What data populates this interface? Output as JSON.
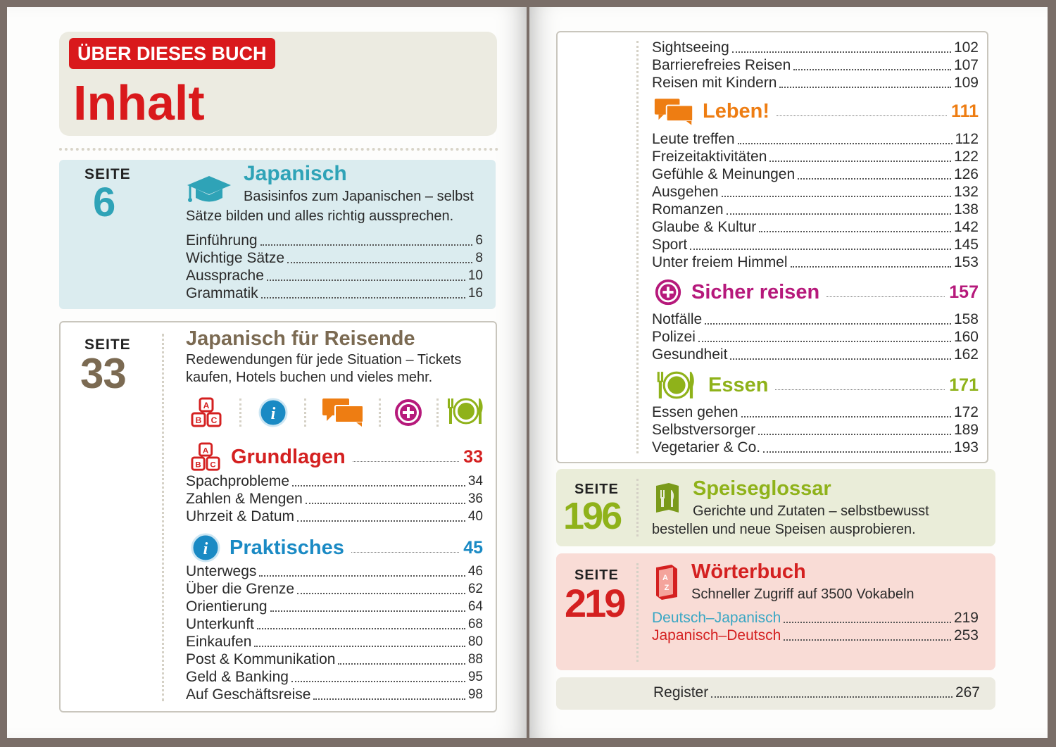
{
  "left": {
    "badge": "ÜBER DIESES BUCH",
    "title": "Inhalt",
    "box1": {
      "seite_label": "SEITE",
      "seite_num": "6",
      "heading": "Japanisch",
      "desc_line1": "Basisinfos zum Japanischen – selbst",
      "desc_line2": "Sätze bilden und alles richtig aussprechen.",
      "entries": [
        {
          "label": "Einführung",
          "page": "6"
        },
        {
          "label": "Wichtige Sätze",
          "page": "8"
        },
        {
          "label": "Aussprache",
          "page": "10"
        },
        {
          "label": "Grammatik",
          "page": "16"
        }
      ]
    },
    "box2": {
      "seite_label": "SEITE",
      "seite_num": "33",
      "heading": "Japanisch für Reisende",
      "desc_line1": "Redewendungen für jede Situation – Tickets",
      "desc_line2": "kaufen, Hotels buchen und vieles mehr.",
      "sections": [
        {
          "title": "Grundlagen",
          "page": "33",
          "icon": "abc-blocks-icon",
          "color": "#d42020",
          "entries": [
            {
              "label": "Spachprobleme",
              "page": "34"
            },
            {
              "label": "Zahlen & Mengen",
              "page": "36"
            },
            {
              "label": "Uhrzeit & Datum",
              "page": "40"
            }
          ]
        },
        {
          "title": "Praktisches",
          "page": "45",
          "icon": "info-icon",
          "color": "#1a8ac4",
          "entries": [
            {
              "label": "Unterwegs",
              "page": "46"
            },
            {
              "label": "Über die Grenze",
              "page": "62"
            },
            {
              "label": "Orientierung",
              "page": "64"
            },
            {
              "label": "Unterkunft",
              "page": "68"
            },
            {
              "label": "Einkaufen",
              "page": "80"
            },
            {
              "label": "Post & Kommunikation",
              "page": "88"
            },
            {
              "label": "Geld & Banking",
              "page": "95"
            },
            {
              "label": "Auf Geschäftsreise",
              "page": "98"
            }
          ]
        }
      ]
    }
  },
  "right": {
    "top_entries": [
      {
        "label": "Sightseeing",
        "page": "102"
      },
      {
        "label": "Barrierefreies Reisen",
        "page": "107"
      },
      {
        "label": "Reisen mit Kindern",
        "page": "109"
      }
    ],
    "sections": [
      {
        "title": "Leben!",
        "page": "111",
        "icon": "speech-bubbles-icon",
        "color": "#ee7d12",
        "entries": [
          {
            "label": "Leute treffen",
            "page": "112"
          },
          {
            "label": "Freizeitaktivitäten",
            "page": "122"
          },
          {
            "label": "Gefühle & Meinungen",
            "page": "126"
          },
          {
            "label": "Ausgehen",
            "page": "132"
          },
          {
            "label": "Romanzen",
            "page": "138"
          },
          {
            "label": "Glaube & Kultur",
            "page": "142"
          },
          {
            "label": "Sport",
            "page": "145"
          },
          {
            "label": "Unter freiem Himmel",
            "page": "153"
          }
        ]
      },
      {
        "title": "Sicher reisen",
        "page": "157",
        "icon": "plus-circle-icon",
        "color": "#b6197b",
        "entries": [
          {
            "label": "Notfälle",
            "page": "158"
          },
          {
            "label": "Polizei",
            "page": "160"
          },
          {
            "label": "Gesundheit",
            "page": "162"
          }
        ]
      },
      {
        "title": "Essen",
        "page": "171",
        "icon": "plate-cutlery-icon",
        "color": "#8fb21a",
        "entries": [
          {
            "label": "Essen gehen",
            "page": "172"
          },
          {
            "label": "Selbstversorger",
            "page": "189"
          },
          {
            "label": "Vegetarier & Co.",
            "page": "193"
          }
        ]
      }
    ],
    "speiseglossar": {
      "seite_label": "SEITE",
      "seite_num": "196",
      "heading": "Speiseglossar",
      "desc_line1": "Gerichte und Zutaten – selbstbewusst",
      "desc_line2": "bestellen und neue Speisen ausprobieren."
    },
    "woerterbuch": {
      "seite_label": "SEITE",
      "seite_num": "219",
      "heading": "Wörterbuch",
      "desc": "Schneller Zugriff auf 3500 Vokabeln",
      "entries": [
        {
          "label": "Deutsch–Japanisch",
          "page": "219",
          "color": "#3aa7c4"
        },
        {
          "label": "Japanisch–Deutsch",
          "page": "253",
          "color": "#d42020"
        }
      ]
    },
    "register": {
      "label": "Register",
      "page": "267"
    }
  },
  "colors": {
    "red": "#d42020",
    "teal": "#2fa3b7",
    "brown": "#7b6a52",
    "blue": "#1a8ac4",
    "orange": "#ee7d12",
    "magenta": "#b6197b",
    "green": "#8fb21a",
    "box_teal_bg": "#dbecef",
    "box_green_bg": "#eaedd9",
    "box_pink_bg": "#f9dcd6",
    "header_bg": "#ecebe1"
  }
}
